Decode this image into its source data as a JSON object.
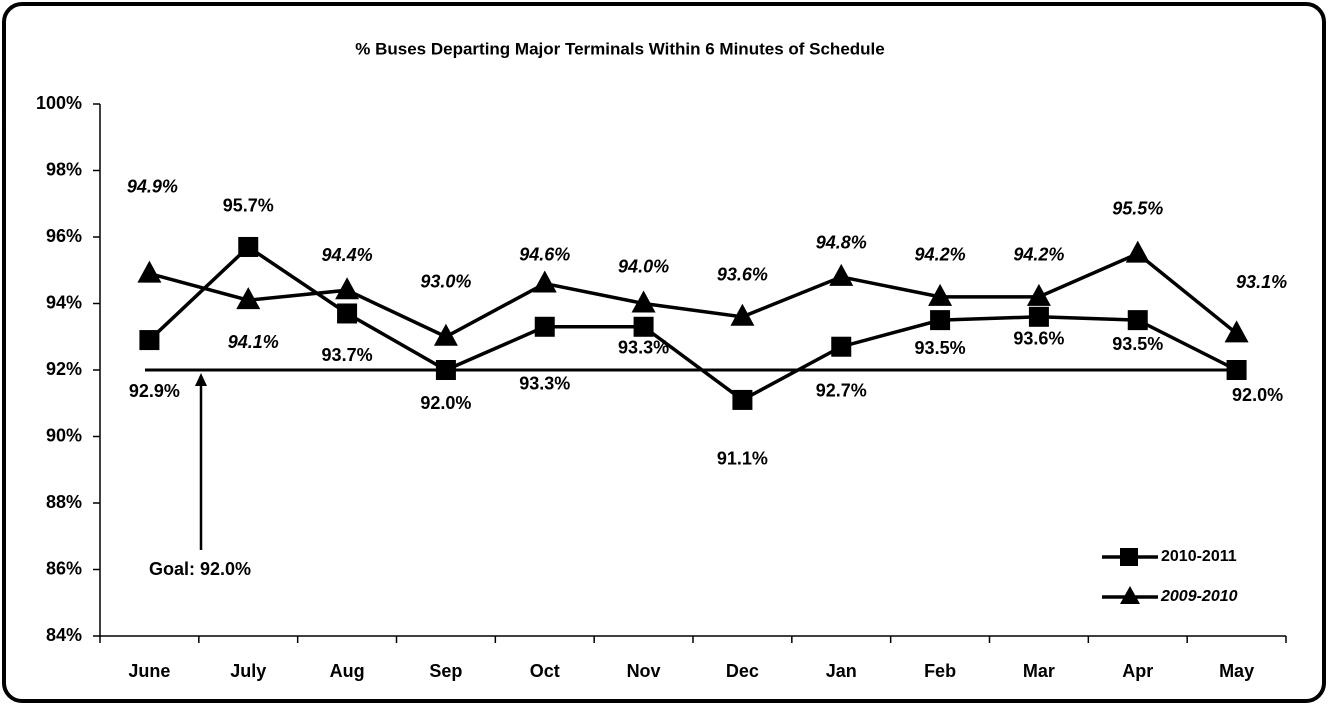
{
  "chart_data": {
    "type": "line",
    "title": "% Buses Departing Major Terminals Within 6 Minutes of Schedule",
    "categories": [
      "June",
      "July",
      "Aug",
      "Sep",
      "Oct",
      "Nov",
      "Dec",
      "Jan",
      "Feb",
      "Mar",
      "Apr",
      "May"
    ],
    "series": [
      {
        "name": "2010-2011",
        "color": "#000000",
        "marker": "square",
        "values": [
          92.9,
          95.7,
          93.7,
          92.0,
          93.3,
          93.3,
          91.1,
          92.7,
          93.5,
          93.6,
          93.5,
          92.0
        ],
        "value_labels": [
          "92.9%",
          "95.7%",
          "93.7%",
          "92.0%",
          "93.3%",
          "93.3%",
          "91.1%",
          "92.7%",
          "93.5%",
          "93.6%",
          "93.5%",
          "92.0%"
        ]
      },
      {
        "name": "2009-2010",
        "color": "#000000",
        "marker": "triangle",
        "values": [
          94.9,
          94.1,
          94.4,
          93.0,
          94.6,
          94.0,
          93.6,
          94.8,
          94.2,
          94.2,
          95.5,
          93.1
        ],
        "value_labels": [
          "94.9%",
          "94.1%",
          "94.4%",
          "93.0%",
          "94.6%",
          "94.0%",
          "93.6%",
          "94.8%",
          "94.2%",
          "94.2%",
          "95.5%",
          "93.1%"
        ]
      }
    ],
    "goal": {
      "value": 92.0,
      "label": "Goal: 92.0%"
    },
    "ylim": [
      84,
      100
    ],
    "yticks": [
      {
        "value": 84,
        "label": "84%"
      },
      {
        "value": 86,
        "label": "86%"
      },
      {
        "value": 88,
        "label": "88%"
      },
      {
        "value": 90,
        "label": "90%"
      },
      {
        "value": 92,
        "label": "92%"
      },
      {
        "value": 94,
        "label": "94%"
      },
      {
        "value": 96,
        "label": "96%"
      },
      {
        "value": 98,
        "label": "98%"
      },
      {
        "value": 100,
        "label": "100%"
      }
    ],
    "legend": "lower right"
  }
}
